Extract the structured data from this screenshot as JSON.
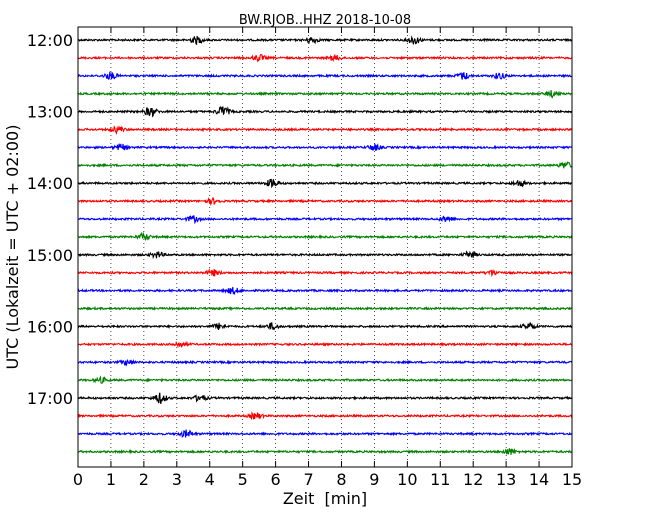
{
  "chart_data": {
    "type": "line",
    "title": "BW.RJOB..HHZ 2018-10-08",
    "xlabel": "Zeit  [min]",
    "ylabel": "UTC (Lokalzeit = UTC + 02:00)",
    "xlim": [
      0,
      15
    ],
    "x_ticks": [
      0,
      1,
      2,
      3,
      4,
      5,
      6,
      7,
      8,
      9,
      10,
      11,
      12,
      13,
      14,
      15
    ],
    "y_tick_labels": [
      "12:00",
      "13:00",
      "14:00",
      "15:00",
      "16:00",
      "17:00"
    ],
    "row_start": "12:00",
    "row_interval_minutes": 15,
    "row_count": 24,
    "grid": "vertical dotted at each minute",
    "trace_colors": [
      "#000000",
      "#ff0000",
      "#0000ff",
      "#008000"
    ],
    "burst_events": [
      {
        "row": 0,
        "minute": 3.6,
        "amp": 3.5
      },
      {
        "row": 0,
        "minute": 7.1,
        "amp": 3.0
      },
      {
        "row": 0,
        "minute": 10.2,
        "amp": 4.0
      },
      {
        "row": 1,
        "minute": 5.5,
        "amp": 3.0
      },
      {
        "row": 1,
        "minute": 7.8,
        "amp": 2.5
      },
      {
        "row": 2,
        "minute": 1.0,
        "amp": 3.5
      },
      {
        "row": 2,
        "minute": 11.7,
        "amp": 3.5
      },
      {
        "row": 2,
        "minute": 12.8,
        "amp": 3.0
      },
      {
        "row": 3,
        "minute": 14.4,
        "amp": 3.0
      },
      {
        "row": 4,
        "minute": 2.2,
        "amp": 4.5
      },
      {
        "row": 4,
        "minute": 4.4,
        "amp": 5.0
      },
      {
        "row": 5,
        "minute": 1.2,
        "amp": 3.0
      },
      {
        "row": 6,
        "minute": 1.3,
        "amp": 3.0
      },
      {
        "row": 6,
        "minute": 9.0,
        "amp": 3.0
      },
      {
        "row": 7,
        "minute": 14.8,
        "amp": 3.0
      },
      {
        "row": 8,
        "minute": 5.9,
        "amp": 4.0
      },
      {
        "row": 8,
        "minute": 13.4,
        "amp": 3.0
      },
      {
        "row": 9,
        "minute": 4.1,
        "amp": 2.5
      },
      {
        "row": 10,
        "minute": 3.5,
        "amp": 3.0
      },
      {
        "row": 10,
        "minute": 11.2,
        "amp": 3.0
      },
      {
        "row": 11,
        "minute": 2.0,
        "amp": 3.0
      },
      {
        "row": 12,
        "minute": 2.4,
        "amp": 3.0
      },
      {
        "row": 12,
        "minute": 11.9,
        "amp": 3.0
      },
      {
        "row": 13,
        "minute": 4.1,
        "amp": 3.0
      },
      {
        "row": 13,
        "minute": 12.6,
        "amp": 2.5
      },
      {
        "row": 14,
        "minute": 4.7,
        "amp": 3.0
      },
      {
        "row": 16,
        "minute": 4.3,
        "amp": 3.0
      },
      {
        "row": 16,
        "minute": 5.9,
        "amp": 3.0
      },
      {
        "row": 16,
        "minute": 13.7,
        "amp": 3.0
      },
      {
        "row": 17,
        "minute": 3.1,
        "amp": 2.5
      },
      {
        "row": 18,
        "minute": 1.5,
        "amp": 2.5
      },
      {
        "row": 19,
        "minute": 0.7,
        "amp": 2.5
      },
      {
        "row": 20,
        "minute": 2.5,
        "amp": 5.0
      },
      {
        "row": 20,
        "minute": 3.7,
        "amp": 3.0
      },
      {
        "row": 21,
        "minute": 5.4,
        "amp": 3.0
      },
      {
        "row": 22,
        "minute": 3.3,
        "amp": 3.5
      },
      {
        "row": 23,
        "minute": 13.1,
        "amp": 3.0
      }
    ]
  }
}
